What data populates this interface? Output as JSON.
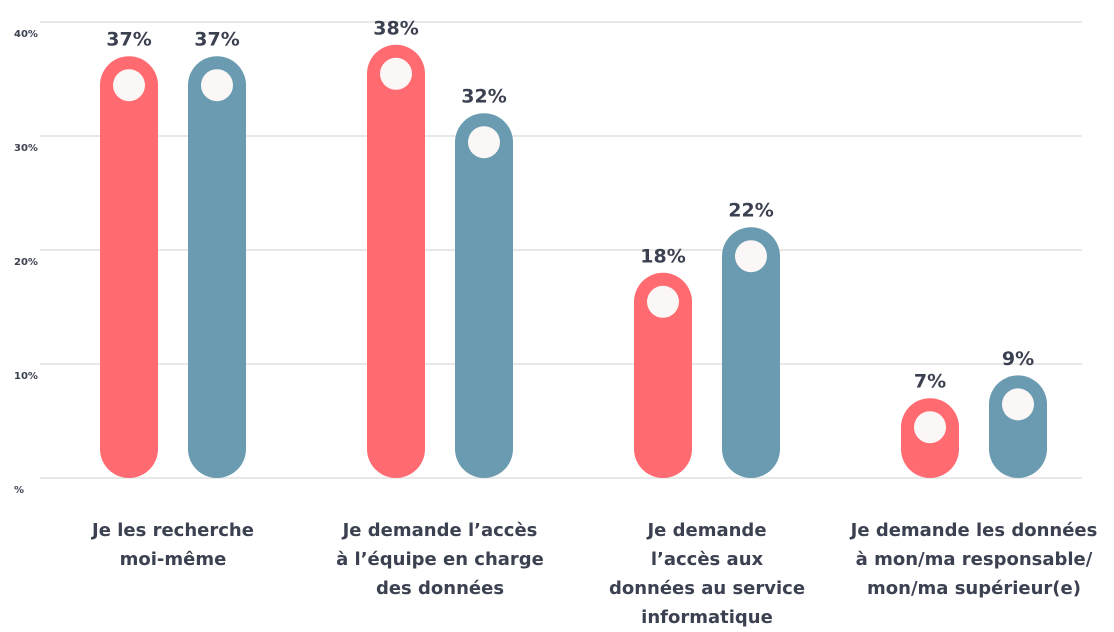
{
  "chart_data": {
    "type": "bar",
    "categories": [
      [
        "Je les recherche",
        "moi-même"
      ],
      [
        "Je demande l’accès",
        "à l’équipe en charge",
        "des données"
      ],
      [
        "Je demande",
        "l’accès aux",
        "données au service",
        "informatique"
      ],
      [
        "Je demande les données",
        "à mon/ma responsable/",
        "mon/ma supérieur(e)"
      ]
    ],
    "series": [
      {
        "color": "#ff6b70",
        "values": [
          37,
          38,
          18,
          7
        ],
        "value_labels": [
          "37%",
          "38%",
          "18%",
          "7%"
        ]
      },
      {
        "color": "#6a9bb0",
        "values": [
          37,
          32,
          22,
          9
        ],
        "value_labels": [
          "37%",
          "32%",
          "22%",
          "9%"
        ]
      }
    ],
    "ylim": [
      0,
      40
    ],
    "yticks": [
      {
        "value": 0,
        "label": "%"
      },
      {
        "value": 10,
        "label": "10%"
      },
      {
        "value": 20,
        "label": "20%"
      },
      {
        "value": 30,
        "label": "30%"
      },
      {
        "value": 40,
        "label": "40%"
      }
    ],
    "grid": true
  }
}
